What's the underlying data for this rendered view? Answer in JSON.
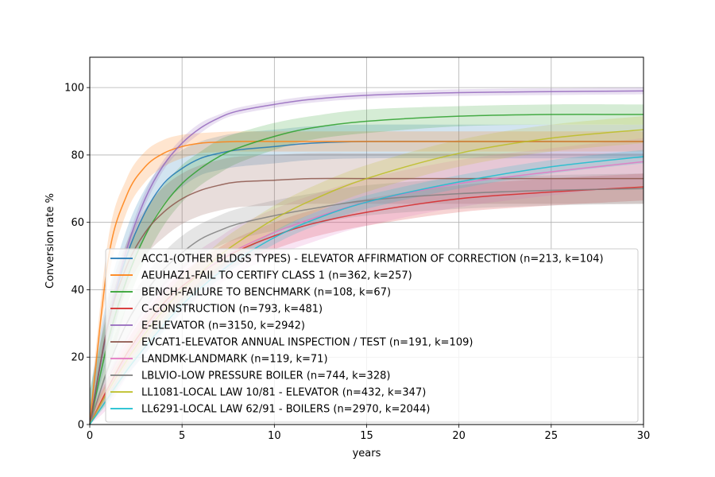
{
  "chart_data": {
    "type": "line",
    "title": "",
    "xlabel": "years",
    "ylabel": "Conversion rate %",
    "xlim": [
      0,
      30
    ],
    "ylim": [
      0,
      109
    ],
    "xticks": [
      "0",
      "5",
      "10",
      "15",
      "20",
      "25",
      "30"
    ],
    "yticks": [
      "0",
      "20",
      "40",
      "60",
      "80",
      "100"
    ],
    "grid": true,
    "legend_position": "lower-right",
    "x": [
      0,
      1,
      2,
      3,
      4,
      5,
      6,
      7,
      8,
      10,
      12,
      15,
      20,
      25,
      30
    ],
    "series": [
      {
        "name": "ACC1-(OTHER BLDGS TYPES) - ELEVATOR AFFIRMATION OF CORRECTION (n=213, k=104)",
        "color": "#1f77b4",
        "values": [
          0,
          30,
          50,
          63,
          71.5,
          76,
          79,
          80.5,
          81.5,
          82.5,
          83.5,
          84,
          84,
          84,
          84
        ],
        "band": [
          10,
          9,
          8,
          7,
          6,
          5.5,
          5,
          5,
          5,
          5,
          5,
          5,
          5,
          5,
          5
        ]
      },
      {
        "name": "AEUHAZ1-FAIL TO CERTIFY CLASS 1 (n=362, k=257)",
        "color": "#ff7f0e",
        "values": [
          0,
          49,
          68,
          76.5,
          80.5,
          82.5,
          83.5,
          83.8,
          84,
          84,
          84,
          84,
          84,
          84,
          84
        ],
        "band": [
          4,
          6,
          5,
          4.5,
          4,
          3.5,
          3,
          3,
          3,
          3,
          3,
          3,
          3,
          3,
          3
        ]
      },
      {
        "name": "BENCH-FAILURE TO BENCHMARK (n=108, k=67)",
        "color": "#2ca02c",
        "values": [
          0,
          25,
          43,
          56,
          65,
          71.5,
          76,
          79.5,
          82,
          85.5,
          88,
          90,
          91.5,
          92,
          92
        ],
        "band": [
          10,
          9,
          8,
          7,
          6,
          5.5,
          5,
          5,
          4.5,
          4,
          3.5,
          3.5,
          3,
          3,
          3
        ]
      },
      {
        "name": "C-CONSTRUCTION (n=793, k=481)",
        "color": "#d62728",
        "values": [
          0,
          11,
          21,
          29,
          36,
          41,
          45,
          48.5,
          51.5,
          56,
          59.5,
          63,
          67,
          69,
          70.5
        ],
        "band": [
          3,
          3,
          3.5,
          4,
          4,
          4,
          4,
          4,
          4,
          4,
          4,
          4,
          4,
          4,
          4
        ]
      },
      {
        "name": "E-ELEVATOR (n=3150, k=2942)",
        "color": "#9467bd",
        "values": [
          0,
          30,
          52,
          67,
          77,
          83.5,
          88,
          91,
          93,
          95,
          96.5,
          97.7,
          98.5,
          98.8,
          99
        ],
        "band": [
          2,
          2,
          2,
          2,
          1.5,
          1.5,
          1.5,
          1,
          1,
          1,
          1,
          1,
          1,
          1,
          1
        ]
      },
      {
        "name": "EVCAT1-ELEVATOR ANNUAL INSPECTION / TEST (n=191, k=109)",
        "color": "#8c564b",
        "values": [
          0,
          30,
          47,
          57,
          63,
          67,
          69.5,
          71,
          72,
          72.5,
          73,
          73,
          73,
          73,
          73
        ],
        "band": [
          5,
          7,
          7,
          7,
          7.5,
          7.5,
          7.5,
          7.5,
          7.5,
          7.5,
          7.5,
          7.5,
          7.5,
          7.5,
          7.5
        ]
      },
      {
        "name": "LANDMK-LANDMARK (n=119, k=71)",
        "color": "#e377c2",
        "values": [
          0,
          10,
          20,
          28,
          35,
          40,
          45,
          48.5,
          52,
          57,
          61,
          66,
          71.5,
          75,
          78
        ],
        "band": [
          4,
          5,
          6,
          7,
          7,
          7,
          7,
          7,
          7,
          7,
          7,
          7,
          7,
          7,
          7
        ]
      },
      {
        "name": "LBLVIO-LOW PRESSURE BOILER (n=744, k=328)",
        "color": "#7f7f7f",
        "values": [
          0,
          17,
          30,
          39,
          46,
          51,
          55,
          57.5,
          59.5,
          62,
          64,
          66.5,
          68.5,
          69.5,
          70
        ],
        "band": [
          3,
          4,
          5,
          5,
          5,
          5,
          4.5,
          4.5,
          4.5,
          4.5,
          4.5,
          4.5,
          4.5,
          4.5,
          4.5
        ]
      },
      {
        "name": "LL1081-LOCAL LAW 10/81 - ELEVATOR (n=432, k=347)",
        "color": "#bcbd22",
        "values": [
          0,
          10,
          19,
          27,
          34,
          40,
          45,
          50,
          54,
          61,
          66.5,
          73,
          80.5,
          85,
          87.5
        ],
        "band": [
          3,
          3,
          3.5,
          4,
          4,
          4,
          4,
          4,
          4,
          4,
          4,
          4,
          4,
          4,
          4
        ]
      },
      {
        "name": "LL6291-LOCAL LAW 62/91 - BOILERS (n=2970, k=2044)",
        "color": "#17becf",
        "values": [
          0,
          8,
          16,
          23,
          29.5,
          35.5,
          40.5,
          45,
          49,
          55.5,
          60.5,
          66,
          72,
          76.5,
          79.5
        ],
        "band": [
          1.5,
          1.5,
          1.5,
          2,
          2,
          2,
          2,
          2,
          2,
          2,
          2,
          2,
          2,
          2,
          2
        ]
      }
    ]
  }
}
